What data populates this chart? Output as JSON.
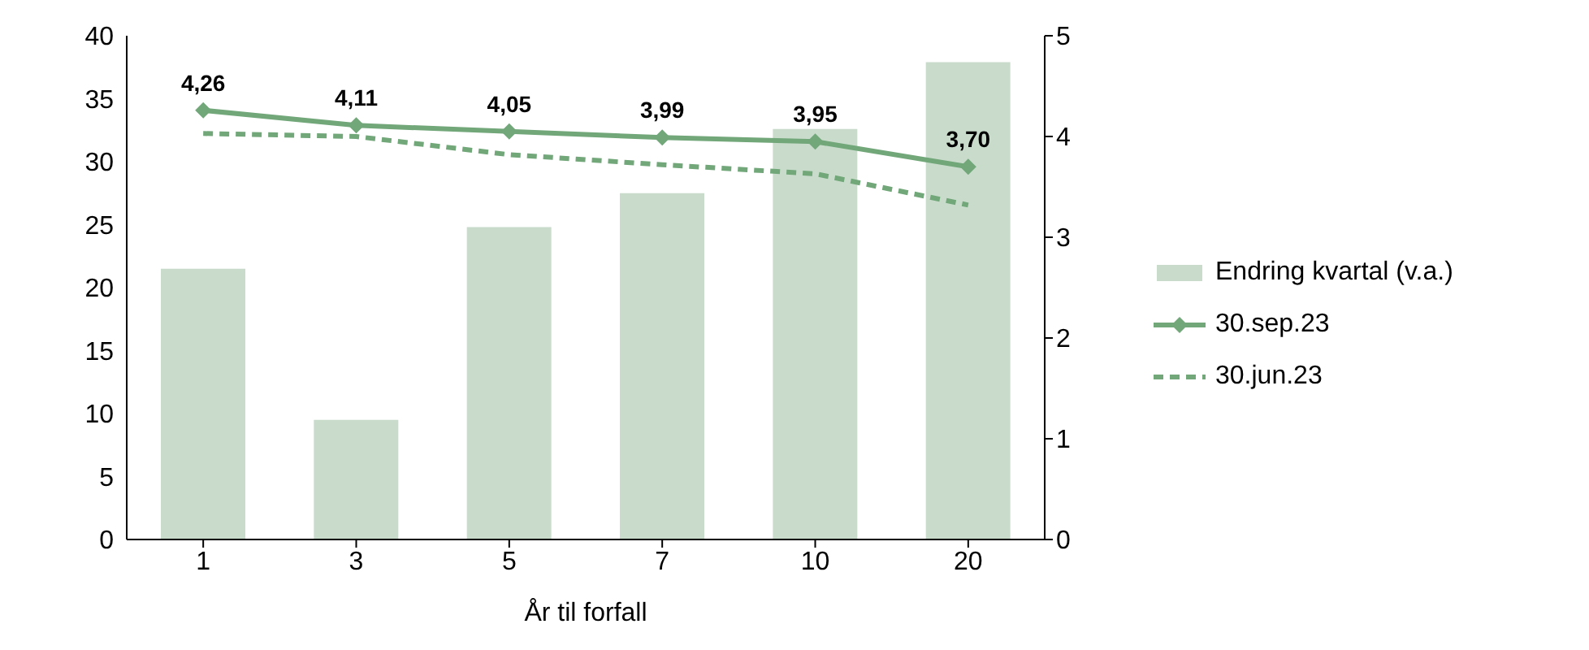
{
  "chart_data": {
    "type": "bar",
    "xlabel": "År til forfall",
    "categories": [
      "1",
      "3",
      "5",
      "7",
      "10",
      "20"
    ],
    "series": [
      {
        "name": "Endring kvartal (v.a.)",
        "color": "#c9dccb",
        "values": [
          21.5,
          9.5,
          24.8,
          27.5,
          32.6,
          37.9
        ]
      },
      {
        "name": "30.sep.23",
        "type": "line",
        "axis": "y2",
        "color": "#72a77a",
        "marker": "diamond",
        "line_style": "solid",
        "values": [
          4.26,
          4.11,
          4.05,
          3.99,
          3.95,
          3.7
        ],
        "value_labels": [
          "4,26",
          "4,11",
          "4,05",
          "3,99",
          "3,95",
          "3,70"
        ]
      },
      {
        "name": "30.jun.23",
        "type": "line",
        "axis": "y2",
        "color": "#72a77a",
        "marker": "none",
        "line_style": "dashed",
        "values": [
          4.03,
          4.0,
          3.82,
          3.72,
          3.63,
          3.32
        ]
      }
    ],
    "ylim": [
      0,
      40
    ],
    "yticks": [
      0,
      5,
      10,
      15,
      20,
      25,
      30,
      35,
      40
    ],
    "y2lim": [
      0,
      5
    ],
    "y2ticks": [
      0,
      1,
      2,
      3,
      4,
      5
    ],
    "grid": false,
    "legend": "right"
  }
}
